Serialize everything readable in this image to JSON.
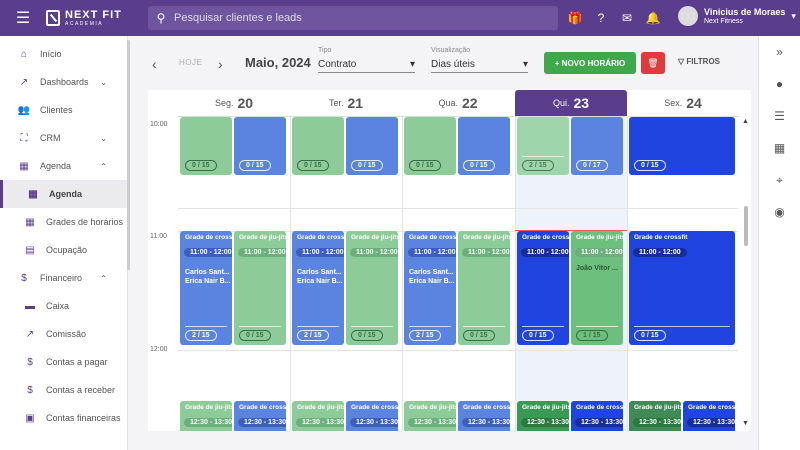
{
  "topbar": {
    "logo_line1": "NEXT FIT",
    "logo_line2": "ACADEMIA",
    "search_placeholder": "Pesquisar clientes e leads",
    "user_name": "Vinicius de Moraes",
    "user_company": "Next Fitness"
  },
  "sidebar": {
    "items": [
      {
        "label": "Início",
        "icon": "home-icon",
        "glyph": "⌂"
      },
      {
        "label": "Dashboards",
        "icon": "chart-icon",
        "glyph": "↗",
        "chevron": "⌄"
      },
      {
        "label": "Clientes",
        "icon": "people-icon",
        "glyph": "👥"
      },
      {
        "label": "CRM",
        "icon": "crm-icon",
        "glyph": "⛶",
        "chevron": "⌄"
      },
      {
        "label": "Agenda",
        "icon": "calendar-icon",
        "glyph": "▦",
        "chevron": "⌃"
      },
      {
        "label": "Agenda",
        "icon": "calendar-icon",
        "glyph": "▦",
        "sub": true,
        "active": true
      },
      {
        "label": "Grades de horários",
        "icon": "grid-icon",
        "glyph": "▦",
        "sub": true
      },
      {
        "label": "Ocupação",
        "icon": "calendar-icon",
        "glyph": "▤",
        "sub": true
      },
      {
        "label": "Financeiro",
        "icon": "money-icon",
        "glyph": "$",
        "chevron": "⌃"
      },
      {
        "label": "Caixa",
        "icon": "cash-icon",
        "glyph": "▬",
        "sub": true
      },
      {
        "label": "Comissão",
        "icon": "trend-icon",
        "glyph": "↗",
        "sub": true
      },
      {
        "label": "Contas a pagar",
        "icon": "dollar-circle-icon",
        "glyph": "$",
        "sub": true
      },
      {
        "label": "Contas a receber",
        "icon": "dollar-icon",
        "glyph": "$",
        "sub": true
      },
      {
        "label": "Contas financeiras",
        "icon": "bank-icon",
        "glyph": "▣",
        "sub": true
      }
    ]
  },
  "toolbar": {
    "today": "HOJE",
    "month": "Maio, 2024",
    "tipo_label": "Tipo",
    "tipo_value": "Contrato",
    "vis_label": "Visualização",
    "vis_value": "Dias úteis",
    "new_label": "+ NOVO HORÁRIO",
    "filters_label": "FILTROS"
  },
  "days": [
    {
      "dow": "Seg.",
      "num": "20"
    },
    {
      "dow": "Ter.",
      "num": "21"
    },
    {
      "dow": "Qua.",
      "num": "22"
    },
    {
      "dow": "Qui.",
      "num": "23",
      "today": true
    },
    {
      "dow": "Sex.",
      "num": "24"
    }
  ],
  "times": [
    "10:00",
    "11:00",
    "12:00"
  ],
  "events": {
    "row1": [
      [
        "0 / 15",
        "0 / 15"
      ],
      [
        "0 / 15",
        "0 / 15"
      ],
      [
        "0 / 15",
        "0 / 15"
      ],
      [
        "2 / 15",
        "0 / 17"
      ],
      [
        "0 / 15"
      ]
    ],
    "row2": {
      "title_a": "Grade de crossfit",
      "title_b": "Grade de jiu-jitsu",
      "time": "11:00 - 12:00",
      "name1": "Carlos Sant...",
      "name2": "Erica Nair B...",
      "today_name": "João Vitor ...",
      "caps": [
        [
          "2 / 15",
          "0 / 15"
        ],
        [
          "2 / 15",
          "0 / 15"
        ],
        [
          "2 / 15",
          "0 / 15"
        ],
        [
          "0 / 15",
          "1 / 15"
        ],
        [
          "0 / 15"
        ]
      ]
    },
    "row3": {
      "title_a": "Grade de jiu-jitsu",
      "title_b": "Grade de crossfit",
      "time": "12:30 - 13:30"
    }
  }
}
